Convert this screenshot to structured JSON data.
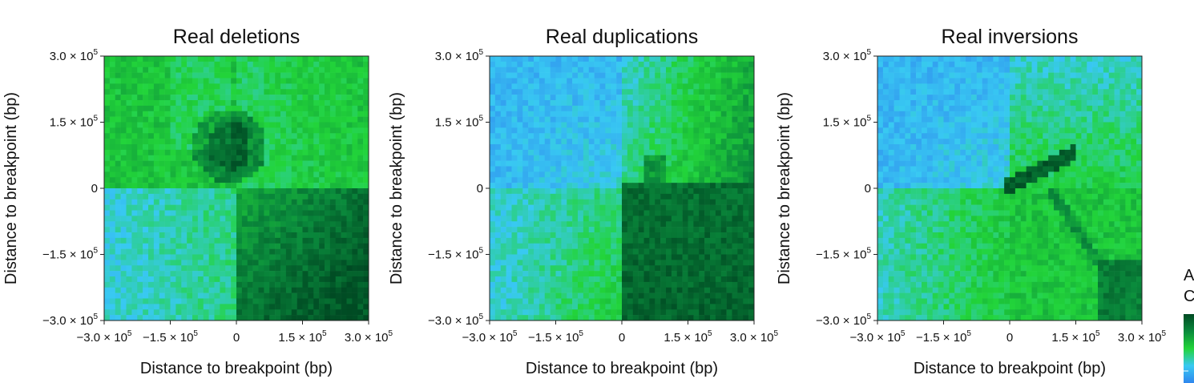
{
  "chart_data": [
    {
      "type": "heatmap",
      "title": "Real deletions",
      "xlabel": "Distance to breakpoint (bp)",
      "ylabel": "Distance to breakpoint (bp)",
      "xlim": [
        -300000,
        300000
      ],
      "ylim": [
        -300000,
        300000
      ],
      "xticks": [
        {
          "value": -300000,
          "label": "−3.0 × 10",
          "exp": "5"
        },
        {
          "value": -150000,
          "label": "−1.5 × 10",
          "exp": "5"
        },
        {
          "value": 0,
          "label": "0",
          "exp": ""
        },
        {
          "value": 150000,
          "label": "1.5 × 10",
          "exp": "5"
        },
        {
          "value": 300000,
          "label": "3.0 × 10",
          "exp": "5"
        }
      ],
      "yticks": [
        {
          "value": 300000,
          "label": "3.0 × 10",
          "exp": "5"
        },
        {
          "value": 150000,
          "label": "1.5 × 10",
          "exp": "5"
        },
        {
          "value": 0,
          "label": "0",
          "exp": ""
        },
        {
          "value": -150000,
          "label": "−1.5 × 10",
          "exp": "5"
        },
        {
          "value": -300000,
          "label": "−3.0 × 10",
          "exp": "5"
        }
      ],
      "grid": false,
      "pattern": "deletion",
      "description_levels": {
        "top_left_quadrant": "medium",
        "top_right_quadrant": "medium-low",
        "bottom_left_quadrant": "low",
        "bottom_right_quadrant": "high",
        "near_origin_upper_left": "very high"
      }
    },
    {
      "type": "heatmap",
      "title": "Real duplications",
      "xlabel": "Distance to breakpoint (bp)",
      "ylabel": "Distance to breakpoint (bp)",
      "xlim": [
        -300000,
        300000
      ],
      "ylim": [
        -300000,
        300000
      ],
      "xticks": [
        {
          "value": -300000,
          "label": "−3.0 × 10",
          "exp": "5"
        },
        {
          "value": -150000,
          "label": "−1.5 × 10",
          "exp": "5"
        },
        {
          "value": 0,
          "label": "0",
          "exp": ""
        },
        {
          "value": 150000,
          "label": "1.5 × 10",
          "exp": "5"
        },
        {
          "value": 300000,
          "label": "3.0 × 10",
          "exp": "5"
        }
      ],
      "yticks": [
        {
          "value": 300000,
          "label": "3.0 × 10",
          "exp": "5"
        },
        {
          "value": 150000,
          "label": "1.5 × 10",
          "exp": "5"
        },
        {
          "value": 0,
          "label": "0",
          "exp": ""
        },
        {
          "value": -150000,
          "label": "−1.5 × 10",
          "exp": "5"
        },
        {
          "value": -300000,
          "label": "−3.0 × 10",
          "exp": "5"
        }
      ],
      "grid": false,
      "pattern": "duplication",
      "description_levels": {
        "top_left_quadrant": "low",
        "top_right_quadrant": "medium",
        "bottom_left_quadrant": "low-medium",
        "bottom_right_quadrant": "very high"
      }
    },
    {
      "type": "heatmap",
      "title": "Real inversions",
      "xlabel": "Distance to breakpoint (bp)",
      "ylabel": "Distance to breakpoint (bp)",
      "xlim": [
        -300000,
        300000
      ],
      "ylim": [
        -300000,
        300000
      ],
      "xticks": [
        {
          "value": -300000,
          "label": "−3.0 × 10",
          "exp": "5"
        },
        {
          "value": -150000,
          "label": "−1.5 × 10",
          "exp": "5"
        },
        {
          "value": 0,
          "label": "0",
          "exp": ""
        },
        {
          "value": 150000,
          "label": "1.5 × 10",
          "exp": "5"
        },
        {
          "value": 300000,
          "label": "3.0 × 10",
          "exp": "5"
        }
      ],
      "yticks": [
        {
          "value": 300000,
          "label": "3.0 × 10",
          "exp": "5"
        },
        {
          "value": 150000,
          "label": "1.5 × 10",
          "exp": "5"
        },
        {
          "value": 0,
          "label": "0",
          "exp": ""
        },
        {
          "value": -150000,
          "label": "−1.5 × 10",
          "exp": "5"
        },
        {
          "value": -300000,
          "label": "−3.0 × 10",
          "exp": "5"
        }
      ],
      "grid": false,
      "pattern": "inversion",
      "description_levels": {
        "top_left_quadrant": "low",
        "top_right_quadrant": "medium",
        "bottom_left_quadrant": "low-medium",
        "bottom_right_quadrant": "medium with high diagonal",
        "diagonal_near_origin": "very high"
      }
    }
  ],
  "colorbar": {
    "title_line1": "A",
    "title_line2": "C",
    "colormap": [
      "#2f86ee",
      "#38c9f2",
      "#22d43a",
      "#0a8a3c",
      "#004a23"
    ]
  },
  "colors": {
    "low": "#2f86ee",
    "mid_low": "#38c9f2",
    "mid": "#22d43a",
    "high": "#0a8a3c",
    "very_high": "#004a23"
  }
}
